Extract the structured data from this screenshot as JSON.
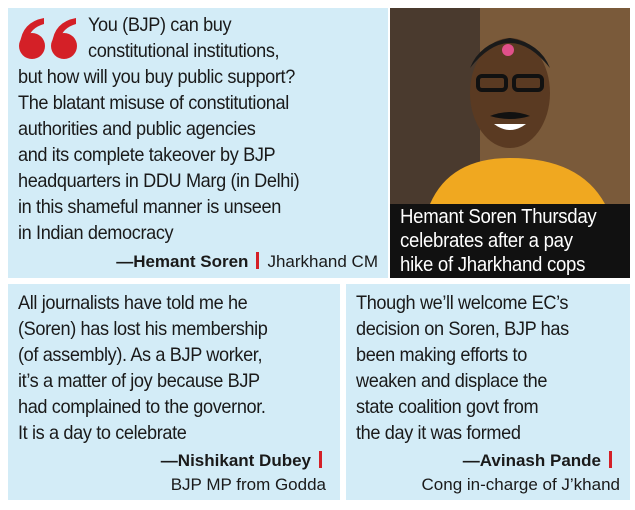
{
  "main_quote": {
    "lines": [
      "You (BJP) can buy",
      "constitutional institutions,",
      "but how will you buy public support?",
      "The blatant misuse of constitutional",
      "authorities and public agencies",
      "and its complete takeover by BJP",
      "headquarters in DDU Marg (in Delhi)",
      "in this shameful manner is unseen",
      "in Indian democracy"
    ],
    "speaker": "—Hemant Soren",
    "role": "Jharkhand CM"
  },
  "photo_caption": {
    "lines": [
      "Hemant Soren Thursday",
      "celebrates after a pay",
      "hike of Jharkhand cops"
    ]
  },
  "quotes": [
    {
      "lines": [
        "All journalists have told me he",
        "(Soren) has lost his membership",
        "(of assembly). As a BJP worker,",
        "it’s a matter of joy because BJP",
        "had complained to the governor.",
        "It is a day to celebrate"
      ],
      "speaker": "—Nishikant Dubey",
      "role": "BJP MP from Godda"
    },
    {
      "lines": [
        "Though we’ll welcome EC’s",
        "decision on Soren, BJP has",
        "been making efforts to",
        "weaken and displace the",
        "state coalition govt from",
        "the day it was formed"
      ],
      "speaker": "—Avinash Pande",
      "role": "Cong in-charge of J’khand"
    }
  ]
}
